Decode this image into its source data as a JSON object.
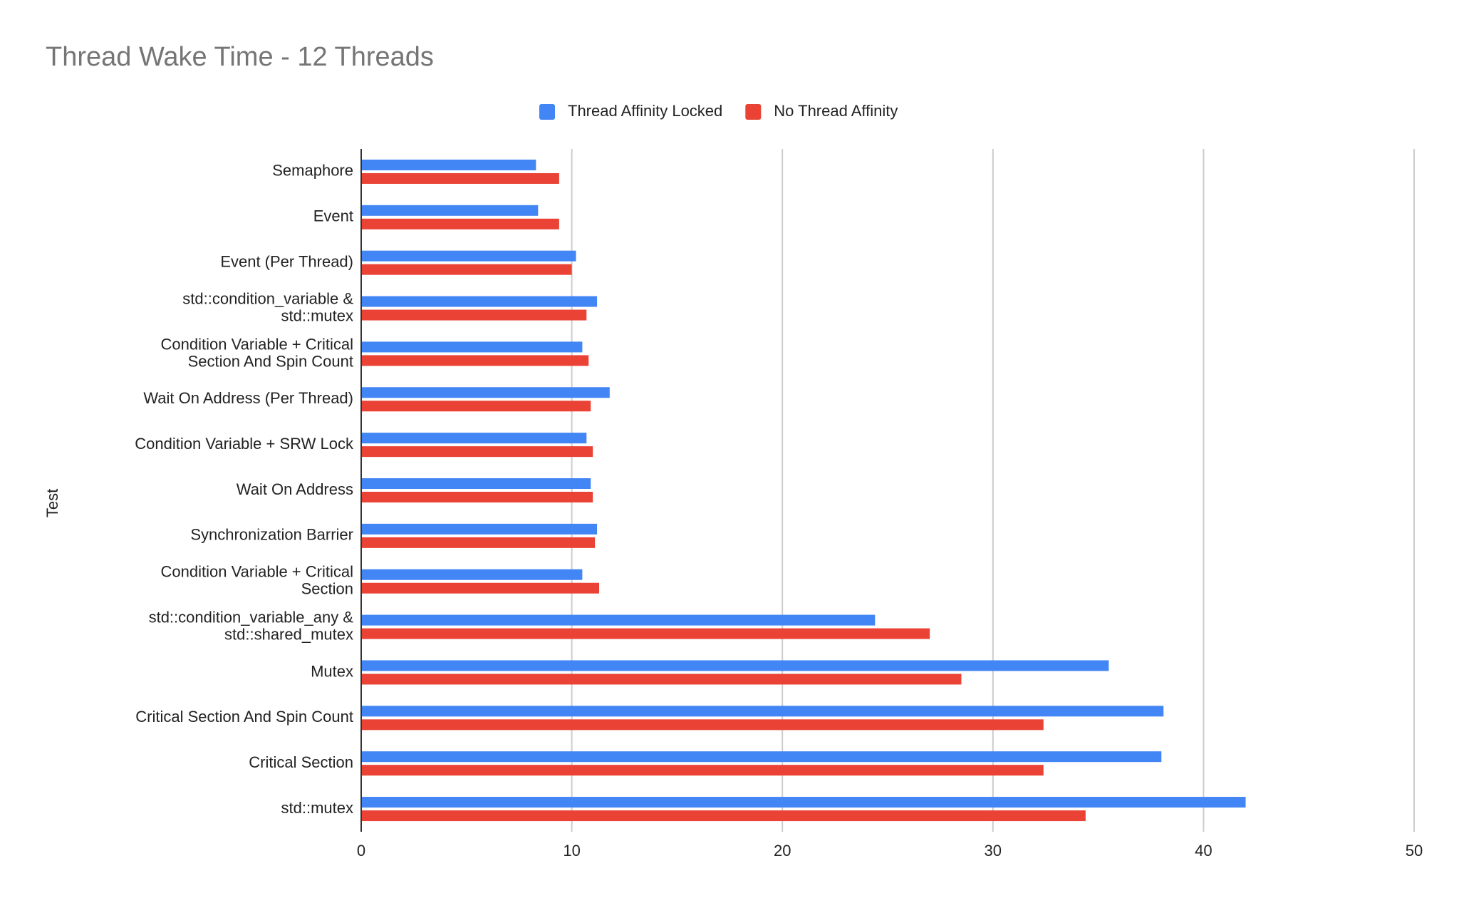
{
  "chart_data": {
    "type": "hbar",
    "title": "Thread Wake Time - 12 Threads",
    "y_label": "Test",
    "categories": [
      "Semaphore",
      "Event",
      "Event (Per Thread)",
      "std::condition_variable &\nstd::mutex",
      "Condition Variable + Critical\nSection And Spin Count",
      "Wait On Address (Per Thread)",
      "Condition Variable + SRW Lock",
      "Wait On Address",
      "Synchronization Barrier",
      "Condition Variable + Critical\nSection",
      "std::condition_variable_any &\nstd::shared_mutex",
      "Mutex",
      "Critical Section And Spin Count",
      "Critical Section",
      "std::mutex"
    ],
    "series": [
      {
        "name": "Thread Affinity Locked",
        "color": "#4285f4",
        "values": [
          8.3,
          8.4,
          10.2,
          11.2,
          10.5,
          11.8,
          10.7,
          10.9,
          11.2,
          10.5,
          24.4,
          35.5,
          38.1,
          38.0,
          42.0
        ]
      },
      {
        "name": "No Thread Affinity",
        "color": "#ea4335",
        "values": [
          9.4,
          9.4,
          10.0,
          10.7,
          10.8,
          10.9,
          11.0,
          11.0,
          11.1,
          11.3,
          27.0,
          28.5,
          32.4,
          32.4,
          34.4
        ]
      }
    ],
    "xlim": [
      0,
      50
    ],
    "xticks": [
      0,
      10,
      20,
      30,
      40,
      50
    ],
    "grid": true,
    "legend": "top"
  }
}
